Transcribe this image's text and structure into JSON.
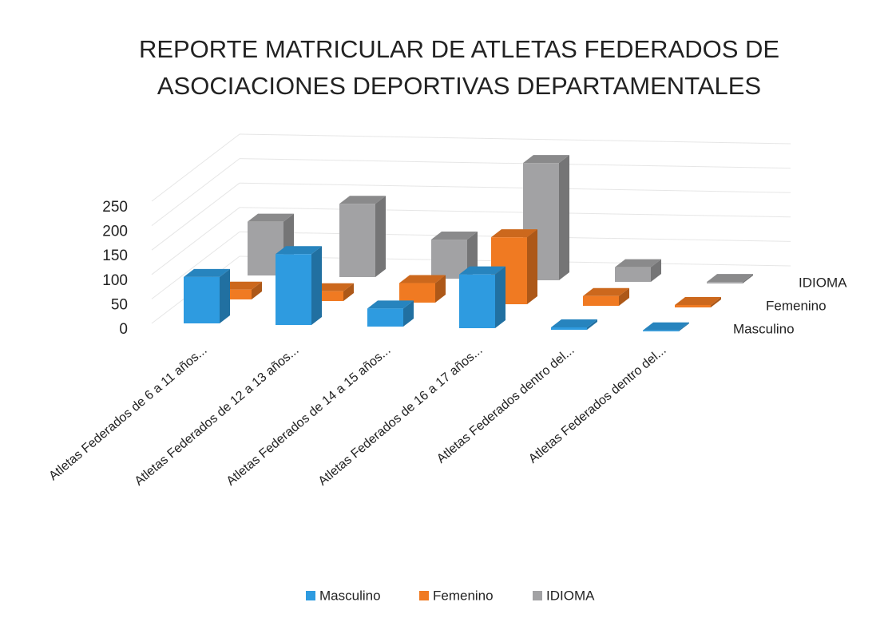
{
  "chart_data": {
    "type": "bar3d",
    "title": [
      "REPORTE MATRICULAR DE ATLETAS FEDERADOS DE",
      "ASOCIACIONES DEPORTIVAS DEPARTAMENTALES"
    ],
    "categories": [
      "Atletas Federados de 6 a 11 años...",
      "Atletas Federados de 12 a 13 años...",
      "Atletas Federados de 14 a 15 años...",
      "Atletas Federados de 16 a 17 años...",
      "Atletas Federados dentro del...",
      "Atletas Federados dentro del..."
    ],
    "series": [
      {
        "name": "Masculino",
        "color": "#2e9be0",
        "values": [
          95,
          145,
          37,
          110,
          5,
          2
        ]
      },
      {
        "name": "Femenino",
        "color": "#f07a22",
        "values": [
          20,
          20,
          40,
          137,
          20,
          5
        ]
      },
      {
        "name": "IDIOMA",
        "color": "#a2a2a4",
        "values": [
          110,
          150,
          80,
          240,
          30,
          3
        ]
      }
    ],
    "ylim": [
      0,
      250
    ],
    "yticks": [
      0,
      50,
      100,
      150,
      200,
      250
    ],
    "grid": true
  }
}
